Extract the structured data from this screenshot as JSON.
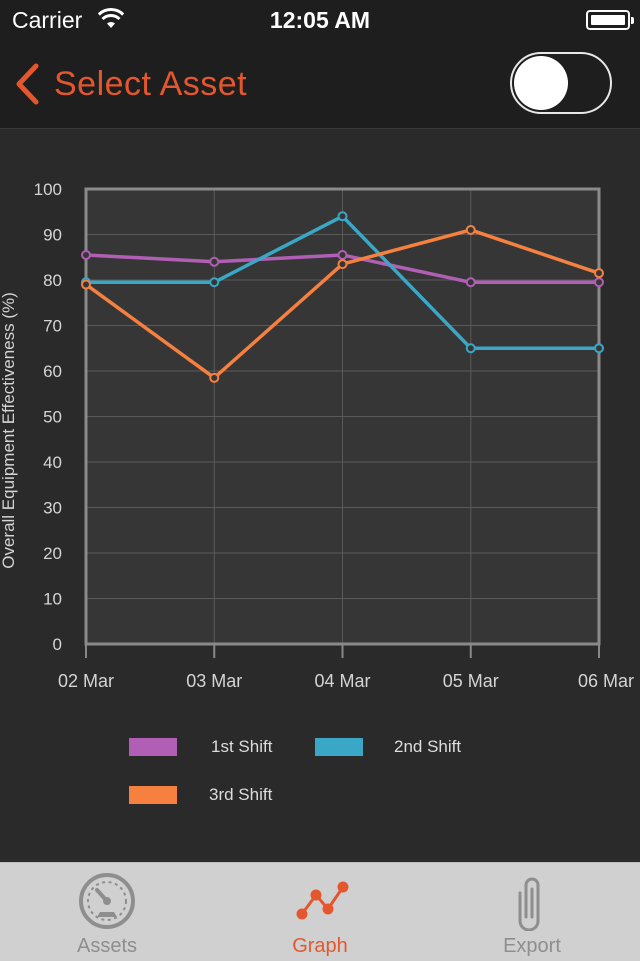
{
  "status_bar": {
    "carrier": "Carrier",
    "time": "12:05 AM"
  },
  "nav": {
    "back_label": "Select Asset",
    "toggle_on": false
  },
  "colors": {
    "accent": "#e4572e",
    "series_1": "#b05fb5",
    "series_2": "#3aa7c6",
    "series_3": "#f58040"
  },
  "chart_data": {
    "type": "line",
    "ylabel": "Overall Equipment Effectiveness (%)",
    "xlabel": "",
    "ylim": [
      0,
      100
    ],
    "y_ticks": [
      "0",
      "10",
      "20",
      "30",
      "40",
      "50",
      "60",
      "70",
      "80",
      "90",
      "100"
    ],
    "categories": [
      "02 Mar",
      "03 Mar",
      "04 Mar",
      "05 Mar",
      "06 Mar"
    ],
    "grid": true,
    "series": [
      {
        "name": "1st Shift",
        "color": "#b05fb5",
        "values": [
          85.5,
          84,
          85.5,
          79.5,
          79.5
        ]
      },
      {
        "name": "2nd Shift",
        "color": "#3aa7c6",
        "values": [
          79.5,
          79.5,
          94,
          65,
          65
        ]
      },
      {
        "name": "3rd Shift",
        "color": "#f58040",
        "values": [
          79,
          58.5,
          83.5,
          91,
          81.5
        ]
      }
    ]
  },
  "tabs": [
    {
      "label": "Assets",
      "icon": "gauge-icon",
      "active": false
    },
    {
      "label": "Graph",
      "icon": "graph-icon",
      "active": true
    },
    {
      "label": "Export",
      "icon": "paperclip-icon",
      "active": false
    }
  ]
}
